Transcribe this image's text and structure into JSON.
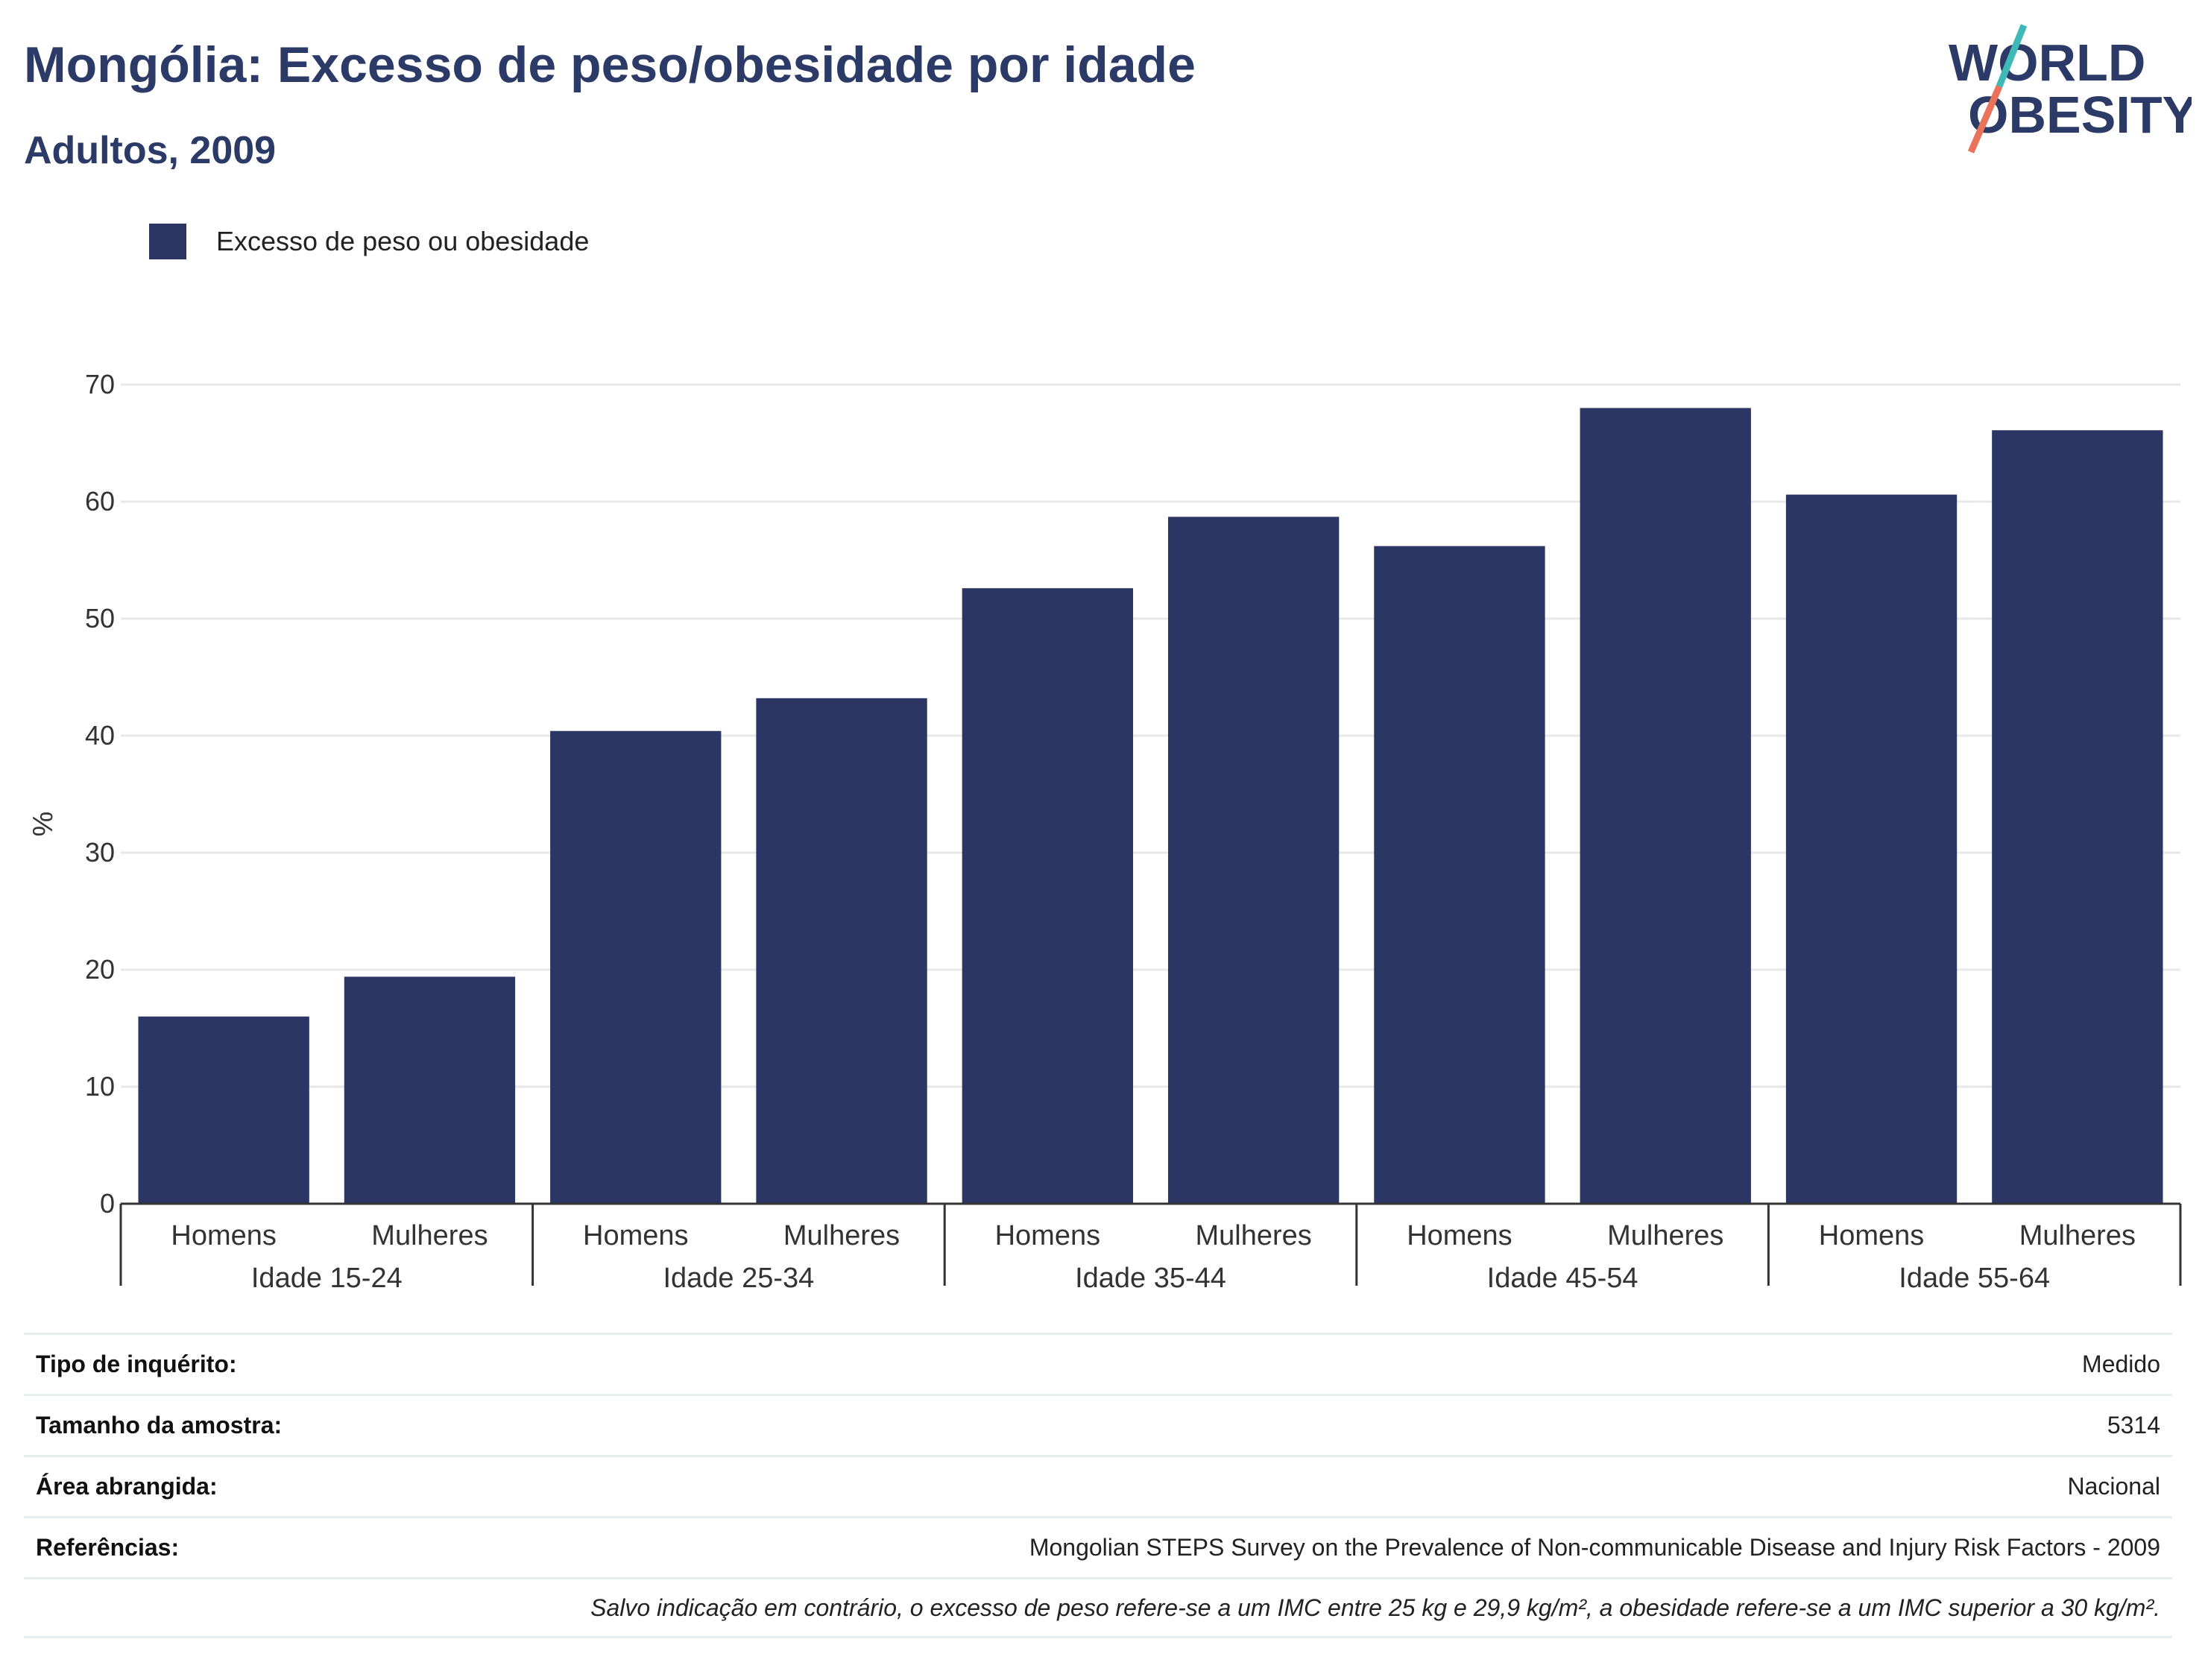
{
  "header": {
    "title": "Mongólia: Excesso de peso/obesidade por idade",
    "subtitle": "Adultos, 2009"
  },
  "logo": {
    "line1": "WORLD",
    "line2": "OBESITY",
    "colors": {
      "text": "#2b3a66",
      "slash_top": "#3fb8b8",
      "slash_bottom": "#e8735a"
    }
  },
  "colors": {
    "bar": "#2b3664",
    "grid": "#e8e8e8",
    "axis": "#333333"
  },
  "chart_data": {
    "type": "bar",
    "ylabel": "%",
    "ylim": [
      0,
      70
    ],
    "yticks": [
      0,
      10,
      20,
      30,
      40,
      50,
      60,
      70
    ],
    "grid": true,
    "legend_position": "top-left",
    "groups": [
      "Idade 15-24",
      "Idade 25-34",
      "Idade 35-44",
      "Idade 45-54",
      "Idade 55-64"
    ],
    "subcategories": [
      "Homens",
      "Mulheres"
    ],
    "series": [
      {
        "name": "Excesso de peso ou obesidade",
        "values": [
          16.0,
          19.4,
          40.4,
          43.2,
          52.6,
          58.7,
          56.2,
          68.0,
          60.6,
          66.1
        ]
      }
    ]
  },
  "info": [
    {
      "label": "Tipo de inquérito:",
      "value": "Medido"
    },
    {
      "label": "Tamanho da amostra:",
      "value": "5314"
    },
    {
      "label": "Área abrangida:",
      "value": "Nacional"
    },
    {
      "label": "Referências:",
      "value": "Mongolian STEPS Survey on the Prevalence of Non-communicable Disease and Injury Risk Factors - 2009"
    }
  ],
  "note": "Salvo indicação em contrário, o excesso de peso refere-se a um IMC entre 25 kg e 29,9 kg/m², a obesidade refere-se a um IMC superior a 30 kg/m²."
}
